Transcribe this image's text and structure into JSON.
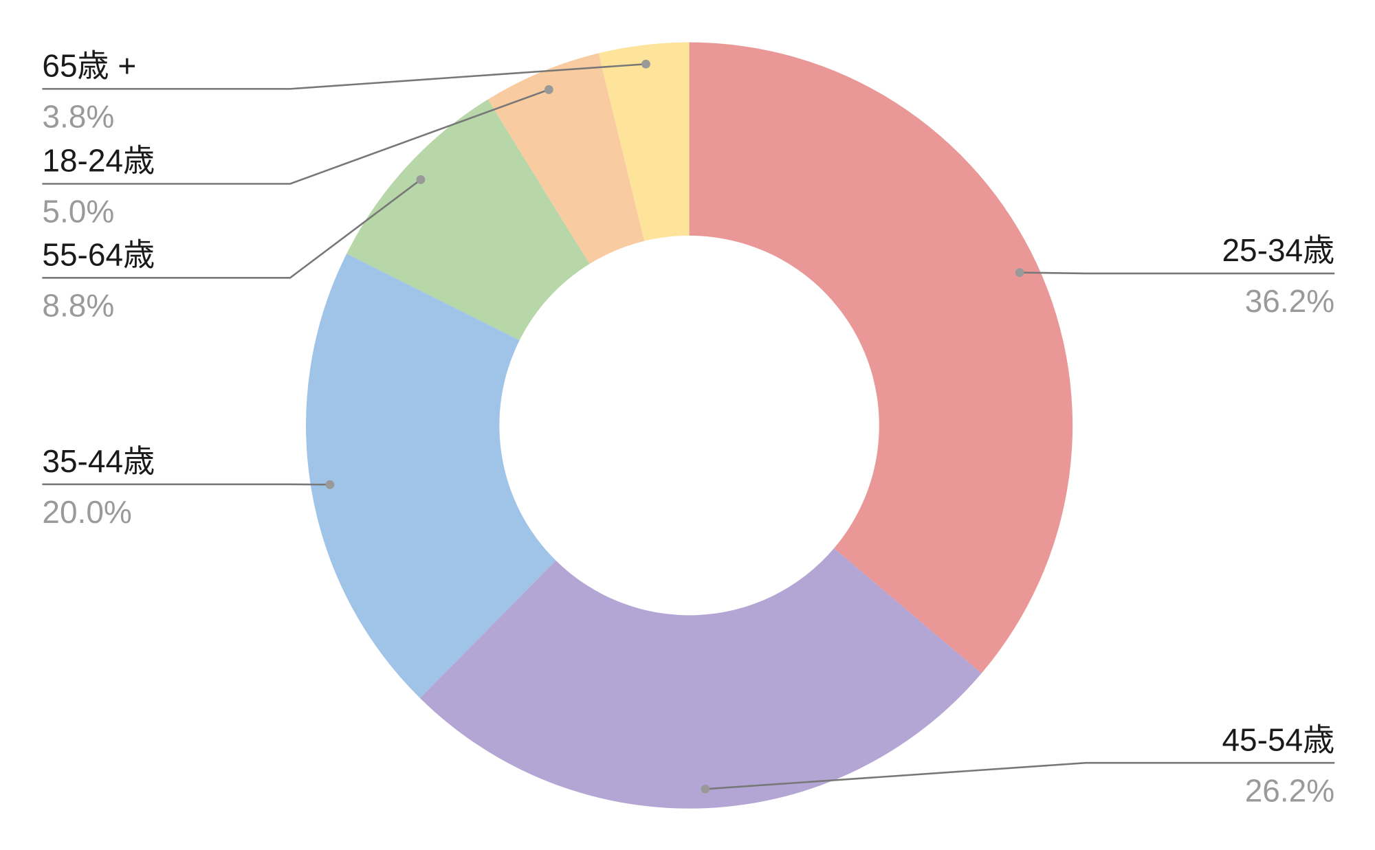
{
  "chart_data": {
    "type": "donut",
    "categories": [
      "25-34歳",
      "45-54歳",
      "35-44歳",
      "55-64歳",
      "18-24歳",
      "65歳 +"
    ],
    "values": [
      36.2,
      26.2,
      20.0,
      8.8,
      5.0,
      3.8
    ],
    "value_labels": [
      "36.2%",
      "26.2%",
      "20.0%",
      "8.8%",
      "5.0%",
      "3.8%"
    ],
    "colors": [
      "#e99897",
      "#b3a6d4",
      "#a0c4e8",
      "#b7d7a8",
      "#f8cba0",
      "#fee49b"
    ]
  }
}
